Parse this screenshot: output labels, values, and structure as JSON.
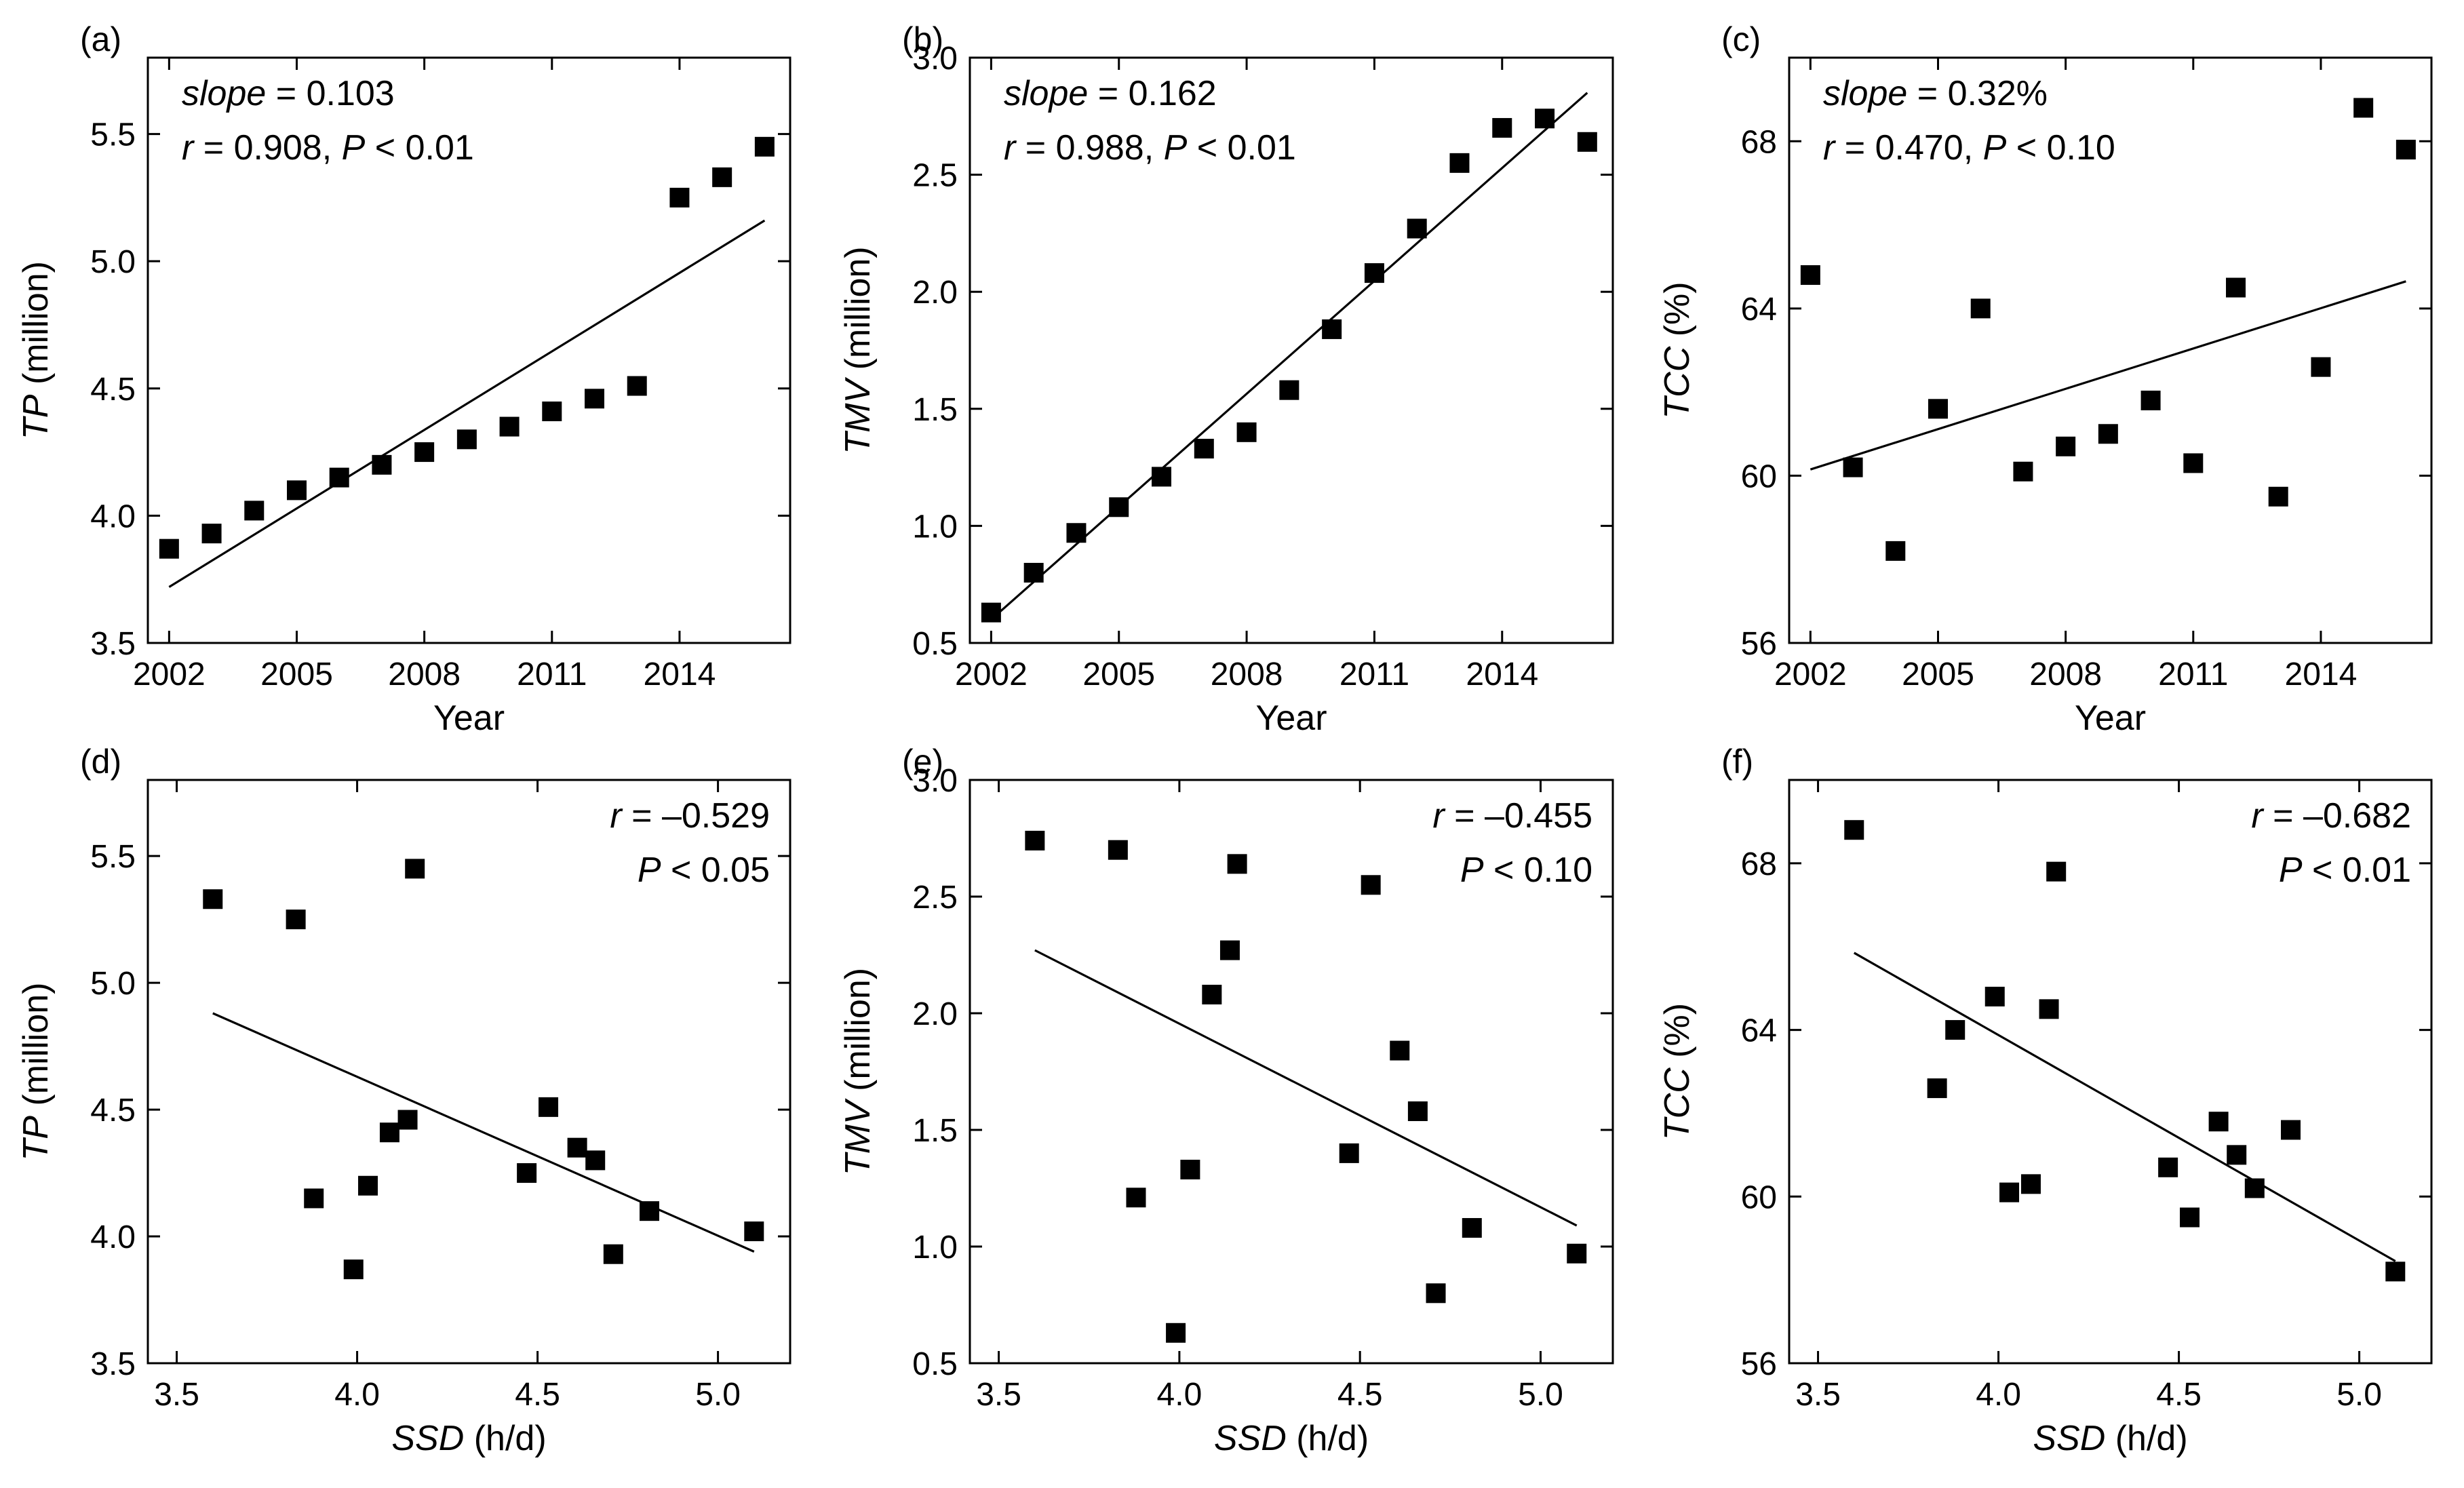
{
  "chart_data": [
    {
      "id": "a",
      "type": "scatter",
      "panel_label": "(a)",
      "xlabel": "Year",
      "xlabel_italic": false,
      "xlabel_unit": "",
      "ylabel": "TP",
      "ylabel_unit": " (million)",
      "xlim": [
        2001.5,
        2016.6
      ],
      "ylim": [
        3.5,
        5.8
      ],
      "xticks": [
        2002,
        2005,
        2008,
        2011,
        2014
      ],
      "xticklabels": [
        "2002",
        "2005",
        "2008",
        "2011",
        "2014"
      ],
      "yticks": [
        3.5,
        4.0,
        4.5,
        5.0,
        5.5
      ],
      "yticklabels": [
        "3.5",
        "4.0",
        "4.5",
        "5.0",
        "5.5"
      ],
      "stats_position": "top-left",
      "stats": [
        {
          "label": "slope",
          "italic": true,
          "value": " = 0.103"
        },
        {
          "label": "r",
          "italic": true,
          "value": " = 0.908, ",
          "label2": "P",
          "value2": " < 0.01"
        }
      ],
      "x": [
        2002,
        2003,
        2004,
        2005,
        2006,
        2007,
        2008,
        2009,
        2010,
        2011,
        2012,
        2013,
        2014,
        2015,
        2016
      ],
      "y": [
        3.87,
        3.93,
        4.02,
        4.1,
        4.15,
        4.2,
        4.25,
        4.3,
        4.35,
        4.41,
        4.46,
        4.51,
        5.25,
        5.33,
        5.45
      ],
      "fit": {
        "x": [
          2002,
          2016
        ],
        "y": [
          3.72,
          5.16
        ]
      }
    },
    {
      "id": "b",
      "type": "scatter",
      "panel_label": "(b)",
      "xlabel": "Year",
      "xlabel_italic": false,
      "xlabel_unit": "",
      "ylabel": "TMV",
      "ylabel_unit": " (million)",
      "xlim": [
        2001.5,
        2016.6
      ],
      "ylim": [
        0.5,
        3.0
      ],
      "xticks": [
        2002,
        2005,
        2008,
        2011,
        2014
      ],
      "xticklabels": [
        "2002",
        "2005",
        "2008",
        "2011",
        "2014"
      ],
      "yticks": [
        0.5,
        1.0,
        1.5,
        2.0,
        2.5,
        3.0
      ],
      "yticklabels": [
        "0.5",
        "1.0",
        "1.5",
        "2.0",
        "2.5",
        "3.0"
      ],
      "stats_position": "top-left",
      "stats": [
        {
          "label": "slope",
          "italic": true,
          "value": " = 0.162"
        },
        {
          "label": "r",
          "italic": true,
          "value": " = 0.988, ",
          "label2": "P",
          "value2": " < 0.01"
        }
      ],
      "x": [
        2002,
        2003,
        2004,
        2005,
        2006,
        2007,
        2008,
        2009,
        2010,
        2011,
        2012,
        2013,
        2014,
        2015,
        2016
      ],
      "y": [
        0.63,
        0.8,
        0.97,
        1.08,
        1.21,
        1.33,
        1.4,
        1.58,
        1.84,
        2.08,
        2.27,
        2.55,
        2.7,
        2.74,
        2.64
      ],
      "fit": {
        "x": [
          2002,
          2016
        ],
        "y": [
          0.6,
          2.85
        ]
      }
    },
    {
      "id": "c",
      "type": "scatter",
      "panel_label": "(c)",
      "xlabel": "Year",
      "xlabel_italic": false,
      "xlabel_unit": "",
      "ylabel": "TCC",
      "ylabel_unit": " (%)",
      "xlim": [
        2001.5,
        2016.6
      ],
      "ylim": [
        56,
        70
      ],
      "xticks": [
        2002,
        2005,
        2008,
        2011,
        2014
      ],
      "xticklabels": [
        "2002",
        "2005",
        "2008",
        "2011",
        "2014"
      ],
      "yticks": [
        56,
        60,
        64,
        68
      ],
      "yticklabels": [
        "56",
        "60",
        "64",
        "68"
      ],
      "stats_position": "top-left",
      "stats": [
        {
          "label": "slope",
          "italic": true,
          "value": " = 0.32%"
        },
        {
          "label": "r",
          "italic": true,
          "value": " = 0.470, ",
          "label2": "P",
          "value2": " < 0.10"
        }
      ],
      "x": [
        2002,
        2003,
        2004,
        2005,
        2006,
        2007,
        2008,
        2009,
        2010,
        2011,
        2012,
        2013,
        2014,
        2015,
        2016
      ],
      "y": [
        64.8,
        60.2,
        58.2,
        61.6,
        64.0,
        60.1,
        60.7,
        61.0,
        61.8,
        60.3,
        64.5,
        59.5,
        62.6,
        68.8,
        67.8
      ],
      "fit": {
        "x": [
          2002,
          2016
        ],
        "y": [
          60.15,
          64.65
        ]
      }
    },
    {
      "id": "d",
      "type": "scatter",
      "panel_label": "(d)",
      "xlabel": "SSD",
      "xlabel_italic": true,
      "xlabel_unit": " (h/d)",
      "ylabel": "TP",
      "ylabel_unit": " (million)",
      "xlim": [
        3.42,
        5.2
      ],
      "ylim": [
        3.5,
        5.8
      ],
      "xticks": [
        3.5,
        4.0,
        4.5,
        5.0
      ],
      "xticklabels": [
        "3.5",
        "4.0",
        "4.5",
        "5.0"
      ],
      "yticks": [
        3.5,
        4.0,
        4.5,
        5.0,
        5.5
      ],
      "yticklabels": [
        "3.5",
        "4.0",
        "4.5",
        "5.0",
        "5.5"
      ],
      "stats_position": "top-right",
      "stats": [
        {
          "label": "r",
          "italic": true,
          "value": " = –0.529"
        },
        {
          "label": "P",
          "italic": true,
          "value": " < 0.05"
        }
      ],
      "x": [
        3.6,
        3.83,
        3.88,
        3.99,
        4.03,
        4.09,
        4.14,
        4.16,
        4.47,
        4.53,
        4.61,
        4.66,
        4.71,
        4.81,
        5.1
      ],
      "y": [
        5.33,
        5.25,
        4.15,
        3.87,
        4.2,
        4.41,
        4.46,
        5.45,
        4.25,
        4.51,
        4.35,
        4.3,
        3.93,
        4.1,
        4.02
      ],
      "fit": {
        "x": [
          3.6,
          5.1
        ],
        "y": [
          4.88,
          3.94
        ]
      }
    },
    {
      "id": "e",
      "type": "scatter",
      "panel_label": "(e)",
      "xlabel": "SSD",
      "xlabel_italic": true,
      "xlabel_unit": " (h/d)",
      "ylabel": "TMV",
      "ylabel_unit": " (million)",
      "xlim": [
        3.42,
        5.2
      ],
      "ylim": [
        0.5,
        3.0
      ],
      "xticks": [
        3.5,
        4.0,
        4.5,
        5.0
      ],
      "xticklabels": [
        "3.5",
        "4.0",
        "4.5",
        "5.0"
      ],
      "yticks": [
        0.5,
        1.0,
        1.5,
        2.0,
        2.5,
        3.0
      ],
      "yticklabels": [
        "0.5",
        "1.0",
        "1.5",
        "2.0",
        "2.5",
        "3.0"
      ],
      "stats_position": "top-right",
      "stats": [
        {
          "label": "r",
          "italic": true,
          "value": " = –0.455"
        },
        {
          "label": "P",
          "italic": true,
          "value": " < 0.10"
        }
      ],
      "x": [
        3.6,
        3.83,
        3.88,
        3.99,
        4.03,
        4.09,
        4.14,
        4.16,
        4.47,
        4.53,
        4.61,
        4.66,
        4.71,
        4.81,
        5.1
      ],
      "y": [
        2.74,
        2.7,
        1.21,
        0.63,
        1.33,
        2.08,
        2.27,
        2.64,
        1.4,
        2.55,
        1.84,
        1.58,
        0.8,
        1.08,
        0.97
      ],
      "fit": {
        "x": [
          3.6,
          5.1
        ],
        "y": [
          2.27,
          1.09
        ]
      }
    },
    {
      "id": "f",
      "type": "scatter",
      "panel_label": "(f)",
      "xlabel": "SSD",
      "xlabel_italic": true,
      "xlabel_unit": " (h/d)",
      "ylabel": "TCC",
      "ylabel_unit": " (%)",
      "xlim": [
        3.42,
        5.2
      ],
      "ylim": [
        56,
        70
      ],
      "xticks": [
        3.5,
        4.0,
        4.5,
        5.0
      ],
      "xticklabels": [
        "3.5",
        "4.0",
        "4.5",
        "5.0"
      ],
      "yticks": [
        56,
        60,
        64,
        68
      ],
      "yticklabels": [
        "56",
        "60",
        "64",
        "68"
      ],
      "stats_position": "top-right",
      "stats": [
        {
          "label": "r",
          "italic": true,
          "value": " = –0.682"
        },
        {
          "label": "P",
          "italic": true,
          "value": " < 0.01"
        }
      ],
      "x": [
        3.6,
        3.83,
        3.88,
        3.99,
        4.03,
        4.09,
        4.14,
        4.16,
        4.47,
        4.53,
        4.61,
        4.66,
        4.71,
        4.81,
        5.1
      ],
      "y": [
        68.8,
        62.6,
        64.0,
        64.8,
        60.1,
        60.3,
        64.5,
        67.8,
        60.7,
        59.5,
        61.8,
        61.0,
        60.2,
        61.6,
        58.2
      ],
      "fit": {
        "x": [
          3.6,
          5.1
        ],
        "y": [
          65.85,
          58.45
        ]
      }
    }
  ]
}
